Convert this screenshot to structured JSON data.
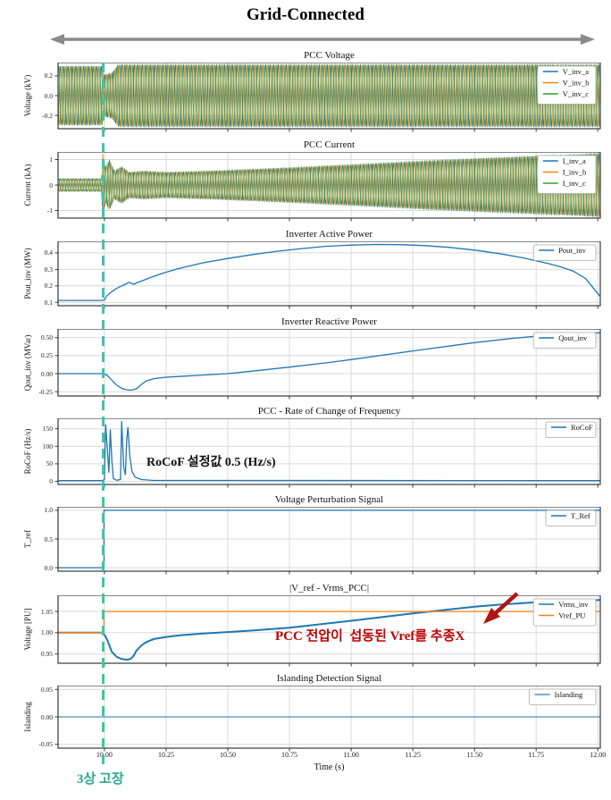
{
  "figure": {
    "title": "Grid-Connected"
  },
  "annotations": {
    "rocof_note": "RoCoF 설정값 0.5 (Hz/s)",
    "tracking_note": "PCC 전압이  섭동된 Vref를 추종X",
    "fault_label": "3상 고장"
  },
  "colors": {
    "phase_a_blue": "#1f77b4",
    "phase_b_orange": "#ff7f0e",
    "phase_c_green": "#2ca02c",
    "fault_teal": "#3fc6a6",
    "note_red": "#c00000",
    "span_arrow_gray": "#8a8a8a",
    "grid_gray": "#d9d9d9",
    "spine_dark": "#3a3a3a"
  },
  "chart_data": {
    "type": "line",
    "xlabel": "Time (s)",
    "xlim": [
      9.812,
      12.01
    ],
    "grid": true,
    "legend_position": "upper right",
    "xticks": {
      "values": [
        10.0,
        10.25,
        10.5,
        10.75,
        11.0,
        11.25,
        11.5,
        11.75,
        12.0
      ],
      "labels": [
        "10.00",
        "10.25",
        "10.50",
        "10.75",
        "11.00",
        "11.25",
        "11.50",
        "11.75",
        "12.00"
      ]
    },
    "fault_time": 10.0,
    "panels": [
      {
        "title": "PCC Voltage",
        "ylabel": "Voltage (kV)",
        "ylim": [
          -0.335,
          0.335
        ],
        "yticks": {
          "values": [
            -0.2,
            0.0,
            0.2
          ],
          "labels": [
            "-0.2",
            "0.0",
            "0.2"
          ]
        },
        "series": [
          {
            "type": "threephase",
            "freq": 60,
            "names": [
              "V_inv_a",
              "V_inv_b",
              "V_inv_c"
            ],
            "colors": [
              "#1f77b4",
              "#ff7f0e",
              "#2ca02c"
            ],
            "envelope": [
              [
                9.812,
                0.3
              ],
              [
                9.99,
                0.3
              ],
              [
                9.996,
                0.21
              ],
              [
                10.03,
                0.23
              ],
              [
                10.055,
                0.315
              ],
              [
                12.01,
                0.315
              ]
            ]
          }
        ]
      },
      {
        "title": "PCC Current",
        "ylabel": "Current (kA)",
        "ylim": [
          -1.3,
          1.3
        ],
        "yticks": {
          "values": [
            -1,
            0,
            1
          ],
          "labels": [
            "-1",
            "0",
            "1"
          ]
        },
        "series": [
          {
            "type": "threephase",
            "freq": 60,
            "names": [
              "I_inv_a",
              "I_inv_b",
              "I_inv_c"
            ],
            "colors": [
              "#1f77b4",
              "#ff7f0e",
              "#2ca02c"
            ],
            "envelope": [
              [
                9.812,
                0.25
              ],
              [
                9.988,
                0.25
              ],
              [
                9.993,
                1.25
              ],
              [
                10.005,
                0.7
              ],
              [
                10.02,
                1.0
              ],
              [
                10.04,
                0.55
              ],
              [
                10.07,
                0.72
              ],
              [
                10.1,
                0.5
              ],
              [
                10.16,
                0.55
              ],
              [
                10.25,
                0.5
              ],
              [
                10.45,
                0.56
              ],
              [
                10.7,
                0.66
              ],
              [
                11.0,
                0.8
              ],
              [
                11.3,
                0.95
              ],
              [
                11.6,
                1.08
              ],
              [
                11.9,
                1.2
              ],
              [
                12.01,
                1.25
              ]
            ]
          }
        ]
      },
      {
        "title": "Inverter Active Power",
        "ylabel": "Pout_inv (MW)",
        "ylim": [
          0.08,
          0.47
        ],
        "yticks": {
          "values": [
            0.1,
            0.2,
            0.3,
            0.4
          ],
          "labels": [
            "0.1",
            "0.2",
            "0.3",
            "0.4"
          ]
        },
        "series": [
          {
            "type": "line",
            "name": "Pout_inv",
            "color": "#1f77b4",
            "points": [
              [
                9.812,
                0.112
              ],
              [
                9.99,
                0.112
              ],
              [
                10.0,
                0.115
              ],
              [
                10.01,
                0.14
              ],
              [
                10.03,
                0.165
              ],
              [
                10.05,
                0.185
              ],
              [
                10.07,
                0.2
              ],
              [
                10.09,
                0.213
              ],
              [
                10.1,
                0.222
              ],
              [
                10.11,
                0.215
              ],
              [
                10.12,
                0.21
              ],
              [
                10.13,
                0.218
              ],
              [
                10.16,
                0.235
              ],
              [
                10.2,
                0.258
              ],
              [
                10.25,
                0.283
              ],
              [
                10.3,
                0.305
              ],
              [
                10.4,
                0.34
              ],
              [
                10.5,
                0.366
              ],
              [
                10.6,
                0.39
              ],
              [
                10.7,
                0.41
              ],
              [
                10.8,
                0.426
              ],
              [
                10.9,
                0.44
              ],
              [
                11.0,
                0.447
              ],
              [
                11.1,
                0.451
              ],
              [
                11.2,
                0.45
              ],
              [
                11.3,
                0.444
              ],
              [
                11.4,
                0.433
              ],
              [
                11.5,
                0.417
              ],
              [
                11.6,
                0.396
              ],
              [
                11.7,
                0.369
              ],
              [
                11.8,
                0.335
              ],
              [
                11.85,
                0.315
              ],
              [
                11.9,
                0.29
              ],
              [
                11.95,
                0.245
              ],
              [
                11.98,
                0.19
              ],
              [
                12.01,
                0.135
              ]
            ]
          }
        ]
      },
      {
        "title": "Inverter Reactive Power",
        "ylabel": "Qout_inv (MVar)",
        "ylim": [
          -0.31,
          0.62
        ],
        "yticks": {
          "values": [
            -0.25,
            0.0,
            0.25,
            0.5
          ],
          "labels": [
            "-0.25",
            "0.00",
            "0.25",
            "0.50"
          ]
        },
        "series": [
          {
            "type": "line",
            "name": "Qout_inv",
            "color": "#1f77b4",
            "points": [
              [
                9.812,
                0.0
              ],
              [
                9.995,
                0.0
              ],
              [
                10.01,
                -0.02
              ],
              [
                10.03,
                -0.09
              ],
              [
                10.05,
                -0.16
              ],
              [
                10.07,
                -0.205
              ],
              [
                10.09,
                -0.225
              ],
              [
                10.11,
                -0.23
              ],
              [
                10.13,
                -0.21
              ],
              [
                10.15,
                -0.15
              ],
              [
                10.17,
                -0.1
              ],
              [
                10.2,
                -0.07
              ],
              [
                10.25,
                -0.05
              ],
              [
                10.3,
                -0.04
              ],
              [
                10.4,
                -0.02
              ],
              [
                10.5,
                0.0
              ],
              [
                10.6,
                0.035
              ],
              [
                10.75,
                0.09
              ],
              [
                10.9,
                0.15
              ],
              [
                11.0,
                0.195
              ],
              [
                11.25,
                0.315
              ],
              [
                11.5,
                0.43
              ],
              [
                11.65,
                0.487
              ],
              [
                11.75,
                0.52
              ],
              [
                11.85,
                0.545
              ],
              [
                11.95,
                0.56
              ],
              [
                12.01,
                0.565
              ]
            ]
          }
        ]
      },
      {
        "title": "PCC - Rate of Change of Frequency",
        "ylabel": "RoCoF (Hz/s)",
        "ylim": [
          -9,
          180
        ],
        "yticks": {
          "values": [
            0,
            50,
            100,
            150
          ],
          "labels": [
            "0",
            "50",
            "100",
            "150"
          ]
        },
        "series": [
          {
            "type": "line",
            "name": "RoCoF",
            "color": "#1f77b4",
            "points": [
              [
                9.812,
                2
              ],
              [
                9.99,
                2
              ],
              [
                10.0,
                5
              ],
              [
                10.005,
                163
              ],
              [
                10.012,
                90
              ],
              [
                10.018,
                25
              ],
              [
                10.024,
                148
              ],
              [
                10.03,
                60
              ],
              [
                10.036,
                8
              ],
              [
                10.05,
                3
              ],
              [
                10.065,
                5
              ],
              [
                10.07,
                172
              ],
              [
                10.078,
                40
              ],
              [
                10.085,
                18
              ],
              [
                10.09,
                115
              ],
              [
                10.095,
                155
              ],
              [
                10.103,
                70
              ],
              [
                10.112,
                28
              ],
              [
                10.125,
                12
              ],
              [
                10.15,
                5
              ],
              [
                10.2,
                2.5
              ],
              [
                12.01,
                2
              ]
            ]
          }
        ]
      },
      {
        "title": "Voltage Perturbation Signal",
        "ylabel": "T_ref",
        "ylim": [
          -0.06,
          1.06
        ],
        "yticks": {
          "values": [
            0.0,
            0.5,
            1.0
          ],
          "labels": [
            "0.0",
            "0.5",
            "1.0"
          ]
        },
        "series": [
          {
            "type": "line",
            "name": "T_Ref",
            "color": "#1f77b4",
            "points": [
              [
                9.812,
                0
              ],
              [
                9.998,
                0
              ],
              [
                9.998,
                1
              ],
              [
                12.01,
                1
              ]
            ]
          }
        ]
      },
      {
        "title": "|V_ref - Vrms_PCC|",
        "ylabel": "Voltage [PU]",
        "ylim": [
          0.928,
          1.088
        ],
        "yticks": {
          "values": [
            0.95,
            1.0,
            1.05
          ],
          "labels": [
            "0.95",
            "1.00",
            "1.05"
          ]
        },
        "series": [
          {
            "type": "line",
            "name": "Vrms_inv",
            "color": "#1f77b4",
            "width": 2,
            "points": [
              [
                9.812,
                1.0
              ],
              [
                9.995,
                1.0
              ],
              [
                10.01,
                0.985
              ],
              [
                10.03,
                0.955
              ],
              [
                10.05,
                0.943
              ],
              [
                10.07,
                0.938
              ],
              [
                10.09,
                0.9365
              ],
              [
                10.1,
                0.937
              ],
              [
                10.11,
                0.94
              ],
              [
                10.12,
                0.947
              ],
              [
                10.13,
                0.958
              ],
              [
                10.15,
                0.97
              ],
              [
                10.17,
                0.978
              ],
              [
                10.2,
                0.985
              ],
              [
                10.25,
                0.99
              ],
              [
                10.3,
                0.9935
              ],
              [
                10.4,
                0.998
              ],
              [
                10.5,
                1.0015
              ],
              [
                10.6,
                1.005
              ],
              [
                10.75,
                1.0115
              ],
              [
                11.0,
                1.028
              ],
              [
                11.25,
                1.0455
              ],
              [
                11.4,
                1.055
              ],
              [
                11.5,
                1.061
              ],
              [
                11.6,
                1.066
              ],
              [
                11.75,
                1.0715
              ],
              [
                11.85,
                1.0745
              ],
              [
                11.95,
                1.076
              ],
              [
                12.01,
                1.077
              ]
            ]
          },
          {
            "type": "line",
            "name": "Vref_PU",
            "color": "#ff7f0e",
            "points": [
              [
                9.812,
                1.0
              ],
              [
                9.998,
                1.0
              ],
              [
                9.998,
                1.05
              ],
              [
                12.01,
                1.05
              ]
            ]
          }
        ]
      },
      {
        "title": "Islanding Detection Signal",
        "ylabel": "Islanding",
        "ylim": [
          -0.057,
          0.057
        ],
        "yticks": {
          "values": [
            -0.05,
            0.0,
            0.05
          ],
          "labels": [
            "-0.05",
            "0.00",
            "0.05"
          ]
        },
        "series": [
          {
            "type": "line",
            "name": "Islanding",
            "color": "#4a90c4",
            "points": [
              [
                9.812,
                0
              ],
              [
                12.01,
                0
              ]
            ]
          }
        ]
      }
    ]
  }
}
